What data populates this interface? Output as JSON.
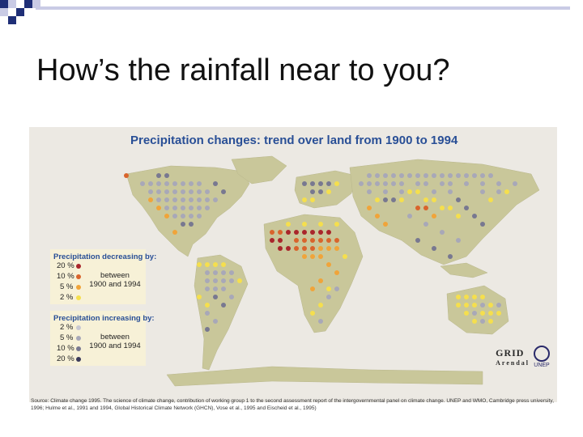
{
  "slide": {
    "title": "How’s the rainfall near to you?"
  },
  "figure": {
    "title": "Precipitation changes: trend over land from 1900 to 1994",
    "legend_decreasing": {
      "title": "Precipitation decreasing by:",
      "rows": [
        "20 %",
        "10 %",
        "5 %",
        "2 %"
      ],
      "colors": [
        "#a9262b",
        "#d9642c",
        "#f0a43a",
        "#f5df4d"
      ],
      "period": "between\n1900 and 1994"
    },
    "legend_increasing": {
      "title": "Precipitation increasing by:",
      "rows": [
        "2 %",
        "5 %",
        "10 %",
        "20 %"
      ],
      "colors": [
        "#c8c8d2",
        "#a8a8b8",
        "#787890",
        "#3a3a5a"
      ],
      "period": "between\n1900 and 1994"
    },
    "logos": {
      "grid": "GRID",
      "arendal": "Arendal",
      "unep": "UNEP"
    },
    "source": "Source: Climate change 1995. The science of climate change, contribution of working group 1 to the second assessment report of the intergovernmental panel on climate change. UNEP and WMO, Cambridge press university, 1996; Hulme et al., 1991 and 1994, Global Historical Climate Network (GHCN), Vose et al., 1995 and Eischeid et al., 1995)"
  },
  "colors": {
    "accent_dark": "#1f2f77",
    "accent_light": "#c9cbe5",
    "map_title": "#294f96",
    "land": "#c9c79a",
    "map_bg": "#ece9e3"
  }
}
